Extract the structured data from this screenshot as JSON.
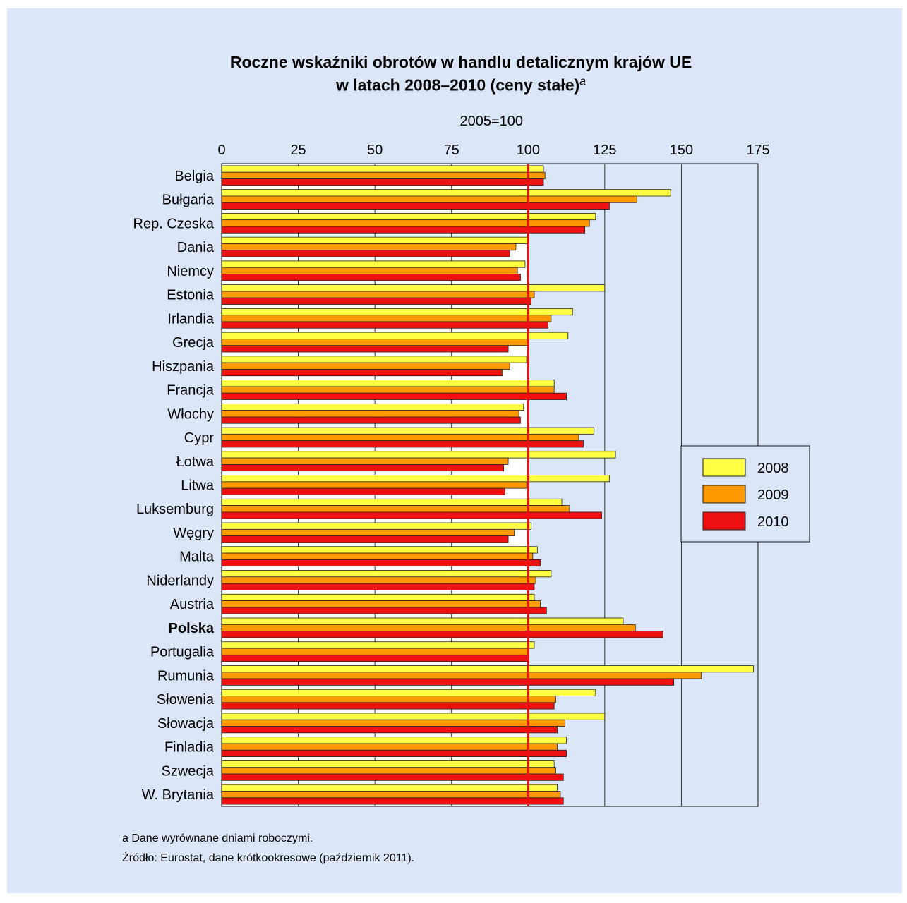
{
  "chart_data": {
    "type": "bar",
    "orientation": "horizontal",
    "title_line1": "Roczne wskaźniki obrotów w handlu detalicznym krajów UE",
    "title_line2": "w latach 2008–2010 (ceny stałe)",
    "title_footnote_mark": "a",
    "axis_title": "2005=100",
    "xlim": [
      0,
      175
    ],
    "ticks": [
      0,
      25,
      50,
      75,
      100,
      125,
      150,
      175
    ],
    "reference_line": 100,
    "reference_color": "#ee1111",
    "highlight_category": "Polska",
    "categories": [
      "Belgia",
      "Bułgaria",
      "Rep. Czeska",
      "Dania",
      "Niemcy",
      "Estonia",
      "Irlandia",
      "Grecja",
      "Hiszpania",
      "Francja",
      "Włochy",
      "Cypr",
      "Łotwa",
      "Litwa",
      "Luksemburg",
      "Węgry",
      "Malta",
      "Niderlandy",
      "Austria",
      "Polska",
      "Portugalia",
      "Rumunia",
      "Słowenia",
      "Słowacja",
      "Finladia",
      "Szwecja",
      "W. Brytania"
    ],
    "series": [
      {
        "name": "2008",
        "color": "#ffff44",
        "values": [
          105,
          146.5,
          122,
          100,
          99,
          125,
          114.5,
          113,
          99.5,
          108.5,
          98.5,
          121.5,
          128.5,
          126.5,
          111,
          101,
          103,
          107.5,
          102,
          131,
          102,
          173.5,
          122,
          125,
          112.5,
          108.5,
          109.5
        ]
      },
      {
        "name": "2009",
        "color": "#ff9900",
        "values": [
          105.5,
          135.5,
          120,
          96,
          96.5,
          102,
          107.5,
          100,
          94,
          108.5,
          97,
          116.5,
          93.5,
          99.5,
          113.5,
          95.5,
          101.5,
          102.5,
          104,
          135,
          100,
          156.5,
          109,
          112,
          109.5,
          109,
          110.5
        ]
      },
      {
        "name": "2010",
        "color": "#ee1111",
        "values": [
          105,
          126.5,
          118.5,
          94,
          97.5,
          101,
          106.5,
          93.5,
          91.5,
          112.5,
          97.5,
          118,
          92,
          92.5,
          124,
          93.5,
          104,
          102,
          106,
          144,
          100,
          147.5,
          108.5,
          109.5,
          112.5,
          111.5,
          111.5
        ]
      }
    ]
  },
  "footnotes": [
    "a Dane wyrównane dniami roboczymi.",
    "Źródło: Eurostat, dane krótkookresowe (październik 2011)."
  ]
}
